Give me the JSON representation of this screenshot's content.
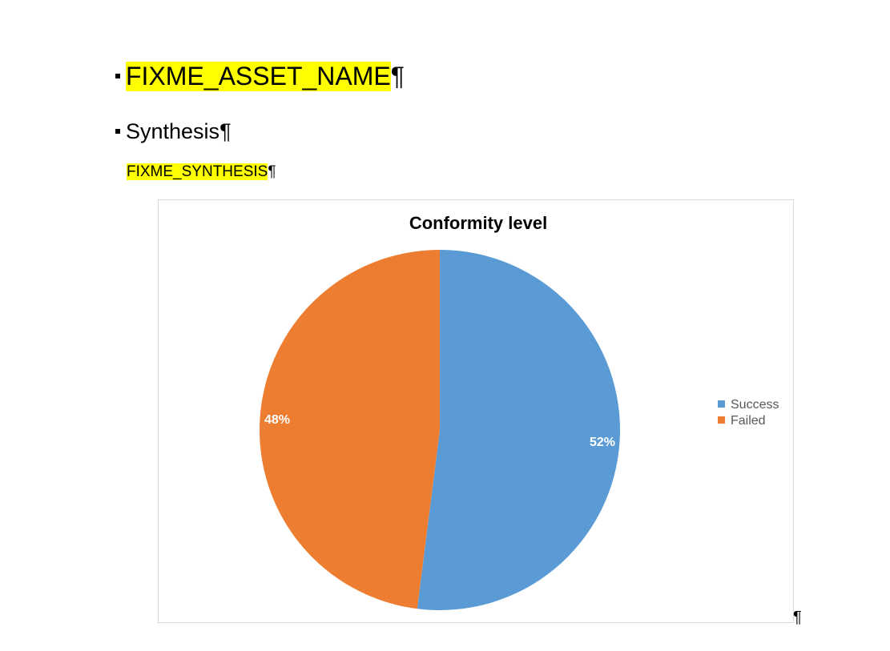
{
  "document": {
    "heading1": "FIXME_ASSET_NAME",
    "heading2": "Synthesis",
    "paragraph": "FIXME_SYNTHESIS",
    "pilcrow": "¶",
    "highlight_color": "#ffff00"
  },
  "chart_data": {
    "type": "pie",
    "title": "Conformity level",
    "categories": [
      "Success",
      "Failed"
    ],
    "values": [
      52,
      48
    ],
    "data_labels": [
      "52%",
      "48%"
    ],
    "colors": [
      "#5b9bd5",
      "#ed7d31"
    ],
    "legend_position": "right"
  }
}
